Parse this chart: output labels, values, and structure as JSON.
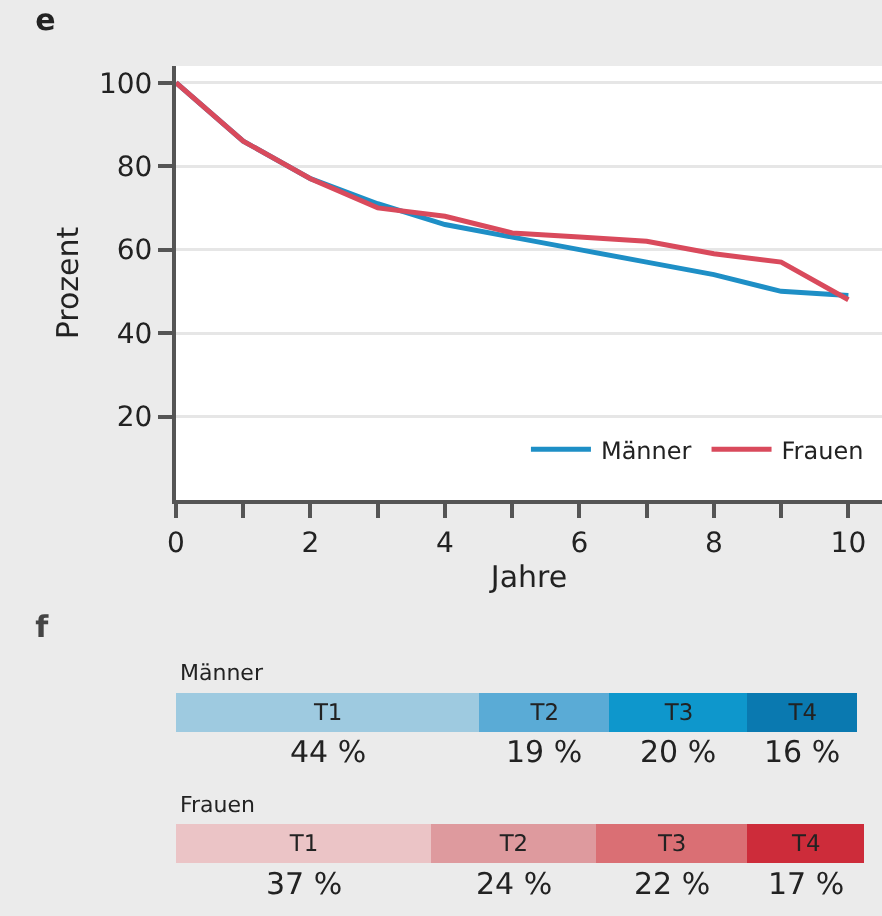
{
  "chart_data": [
    {
      "type": "line",
      "title": "e",
      "xlabel": "Jahre",
      "ylabel": "Prozent",
      "x": [
        0,
        1,
        2,
        3,
        4,
        5,
        6,
        7,
        8,
        9,
        10
      ],
      "series": [
        {
          "name": "Männer",
          "color": "#1e8fc6",
          "values": [
            100,
            86,
            77,
            71,
            66,
            63,
            60,
            57,
            54,
            50,
            49
          ]
        },
        {
          "name": "Frauen",
          "color": "#d94a5c",
          "values": [
            100,
            86,
            77,
            70,
            68,
            64,
            63,
            62,
            59,
            57,
            48
          ]
        }
      ],
      "xlim": [
        0,
        10.5
      ],
      "xticks": [
        0,
        {
          "value": 1,
          "label": null
        },
        2,
        {
          "value": 3,
          "label": null
        },
        4,
        {
          "value": 5,
          "label": null
        },
        6,
        {
          "value": 7,
          "label": null
        },
        8,
        {
          "value": 9,
          "label": null
        },
        10
      ],
      "ylim": [
        0,
        104
      ],
      "yticks": [
        20,
        40,
        60,
        80,
        100
      ],
      "grid": "y",
      "legend": "bottom right",
      "line_style": "solid"
    },
    {
      "type": "bar",
      "title": "f",
      "orientation": "horizontal",
      "stacked": true,
      "tick_labels": "y",
      "categories": [
        "Männer",
        "Frauen"
      ],
      "series": [
        {
          "name": "T1",
          "colors": [
            "#9ecae0",
            "#ebc4c6"
          ],
          "values": [
            44,
            37
          ],
          "value_labels": [
            "44 %",
            "37 %"
          ]
        },
        {
          "name": "T2",
          "colors": [
            "#5aabd6",
            "#de9a9e"
          ],
          "values": [
            19,
            24
          ],
          "value_labels": [
            "19 %",
            "24 %"
          ]
        },
        {
          "name": "T3",
          "colors": [
            "#0e97cc",
            "#da6f74"
          ],
          "values": [
            20,
            22
          ],
          "value_labels": [
            "20 %",
            "22 %"
          ]
        },
        {
          "name": "T4",
          "colors": [
            "#0a79b0",
            "#cd2c3a"
          ],
          "values": [
            16,
            17
          ],
          "value_labels": [
            "16 %",
            "17 %"
          ]
        }
      ]
    }
  ]
}
